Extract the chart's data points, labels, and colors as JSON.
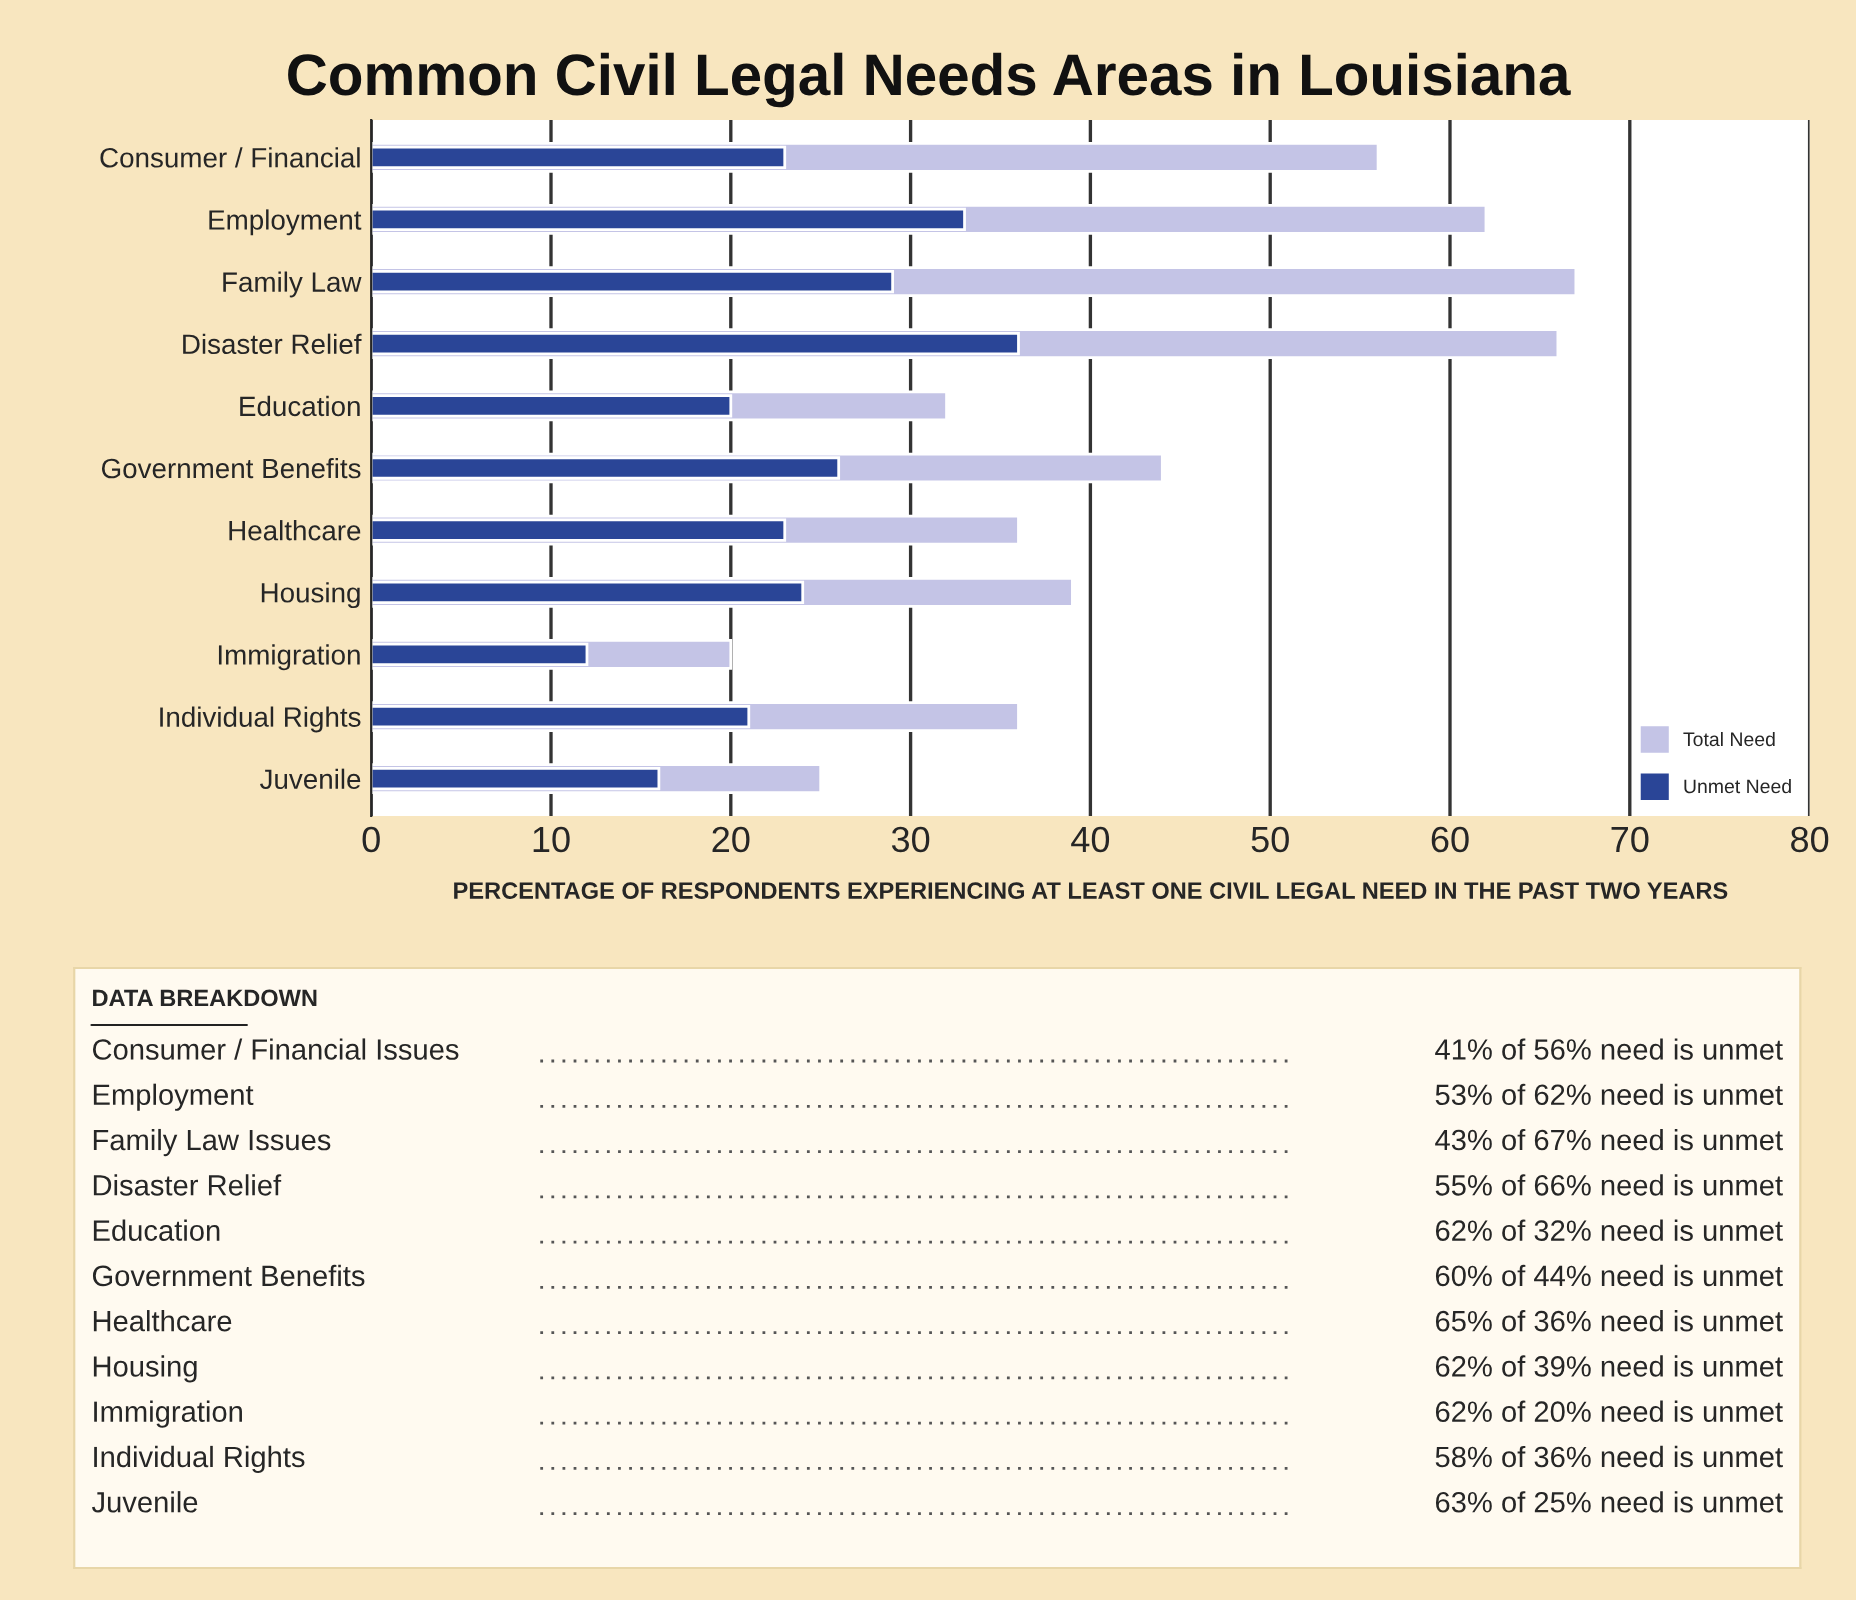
{
  "chart_data": {
    "type": "bar",
    "orientation": "horizontal",
    "title": "Common Civil Legal Needs Areas in Louisiana",
    "xlabel": "PERCENTAGE OF RESPONDENTS EXPERIENCING AT LEAST ONE CIVIL LEGAL NEED IN THE PAST TWO YEARS",
    "categories": [
      "Consumer / Financial",
      "Employment",
      "Family Law",
      "Disaster Relief",
      "Education",
      "Government Benefits",
      "Healthcare",
      "Housing",
      "Immigration",
      "Individual Rights",
      "Juvenile"
    ],
    "series": [
      {
        "name": "Total Need",
        "color": "#c4c4e6",
        "values": [
          56,
          62,
          67,
          66,
          32,
          44,
          36,
          39,
          20,
          36,
          25
        ]
      },
      {
        "name": "Unmet Need",
        "color": "#2a4597",
        "values": [
          23,
          33,
          29,
          36,
          20,
          26,
          23,
          24,
          12,
          21,
          16
        ]
      }
    ],
    "xlim": [
      0,
      80
    ],
    "xticks": [
      0,
      10,
      20,
      30,
      40,
      50,
      60,
      70,
      80
    ],
    "grid": "x",
    "legend": "bottom right",
    "annotations": [
      "DATA BREAKDOWN",
      "Consumer / Financial Issues",
      "41% of 56% need is unmet",
      "Employment",
      "53% of 62% need is unmet",
      "Family Law Issues",
      "43% of 67% need is unmet",
      "Disaster Relief",
      "55% of 66% need is unmet",
      "Education",
      "62% of 32% need is unmet",
      "Government Benefits",
      "60% of 44% need is unmet",
      "Healthcare",
      "65% of 36% need is unmet",
      "Housing",
      "62% of 39% need is unmet",
      "Immigration",
      "62% of 20% need is unmet",
      "Individual Rights",
      "58% of 36% need is unmet",
      "Juvenile",
      "63% of 25% need is unmet"
    ]
  }
}
